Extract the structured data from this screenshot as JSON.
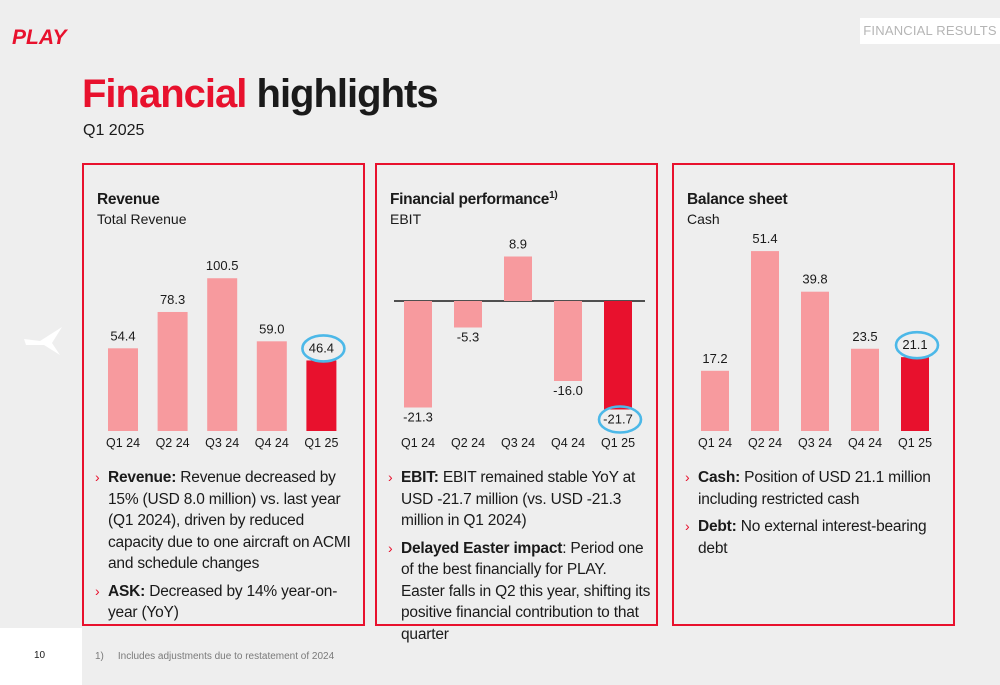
{
  "header": {
    "logo_text": "PLAY",
    "section_tag": "FINANCIAL RESULTS",
    "title_accent": "Financial",
    "title_rest": " highlights",
    "subtitle": "Q1 2025"
  },
  "colors": {
    "brand_red": "#e8112d",
    "bar_pink": "#f79a9e",
    "circle_blue": "#4cb8e8"
  },
  "icons": [
    "play-logo",
    "plane-icon",
    "chevron-right-icon"
  ],
  "panels": [
    {
      "heading": "Revenue",
      "heading_sup": "",
      "subheading": "Total Revenue",
      "bullets": [
        {
          "bold": "Revenue:",
          "text": "  Revenue decreased by 15% (USD 8.0 million) vs. last year (Q1 2024), driven by reduced capacity due to one aircraft on ACMI and schedule changes"
        },
        {
          "bold": "ASK:",
          "text": " Decreased by 14% year-on-year (YoY)"
        }
      ]
    },
    {
      "heading": "Financial performance",
      "heading_sup": "1)",
      "subheading": "EBIT",
      "bullets": [
        {
          "bold": "EBIT:",
          "text": " EBIT remained stable YoY at USD -21.7 million (vs. USD -21.3 million in Q1 2024)"
        },
        {
          "bold": "Delayed Easter impact",
          "text": ": Period one of the best financially for PLAY. Easter falls in Q2 this year, shifting its positive financial contribution to that quarter"
        }
      ]
    },
    {
      "heading": "Balance sheet",
      "heading_sup": "",
      "subheading": "Cash",
      "bullets": [
        {
          "bold": "Cash:",
          "text": " Position of USD 21.1 million including restricted cash"
        },
        {
          "bold": "Debt:",
          "text": " No external interest-bearing debt"
        }
      ]
    }
  ],
  "chart_data": [
    {
      "type": "bar",
      "title": "Revenue",
      "subtitle": "Total Revenue",
      "categories": [
        "Q1 24",
        "Q2 24",
        "Q3 24",
        "Q4 24",
        "Q1 25"
      ],
      "values": [
        54.4,
        78.3,
        100.5,
        59.0,
        46.4
      ],
      "value_labels": [
        "54.4",
        "78.3",
        "100.5",
        "59.0",
        "46.4"
      ],
      "highlight_index": 4,
      "circled_index": 4
    },
    {
      "type": "bar",
      "title": "Financial performance",
      "subtitle": "EBIT",
      "categories": [
        "Q1 24",
        "Q2 24",
        "Q3 24",
        "Q4 24",
        "Q1 25"
      ],
      "values": [
        -21.3,
        -5.3,
        8.9,
        -16.0,
        -21.7
      ],
      "value_labels": [
        "-21.3",
        "-5.3",
        "8.9",
        "-16.0",
        "-21.7"
      ],
      "highlight_index": 4,
      "circled_index": 4
    },
    {
      "type": "bar",
      "title": "Balance sheet",
      "subtitle": "Cash",
      "categories": [
        "Q1 24",
        "Q2 24",
        "Q3 24",
        "Q4 24",
        "Q1 25"
      ],
      "values": [
        17.2,
        51.4,
        39.8,
        23.5,
        21.1
      ],
      "value_labels": [
        "17.2",
        "51.4",
        "39.8",
        "23.5",
        "21.1"
      ],
      "highlight_index": 4,
      "circled_index": 4
    }
  ],
  "footer": {
    "page_number": "10",
    "footnote_mark": "1)",
    "footnote_text": "Includes adjustments due to restatement of 2024"
  }
}
